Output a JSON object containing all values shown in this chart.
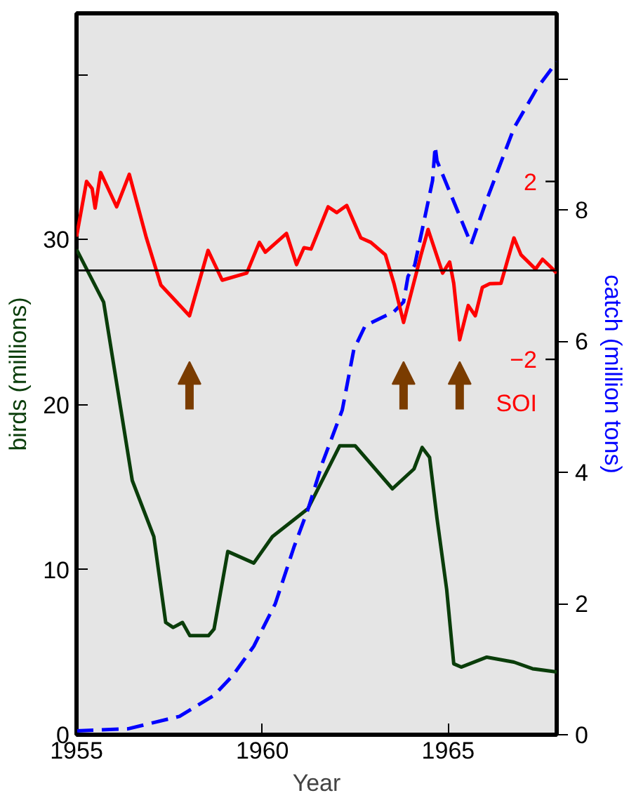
{
  "chart_data": {
    "type": "line",
    "xlabel": "Year",
    "ylabel": "birds (millions)",
    "y2label": "catch (million tons)",
    "y3label": "SOI",
    "xlim": [
      1955,
      1967.92
    ],
    "xticks": [
      1955,
      1960,
      1965
    ],
    "ylim": [
      0,
      43.7
    ],
    "yticks": [
      0,
      10,
      20,
      30,
      {
        "value": 40,
        "label": null
      }
    ],
    "y2lim": [
      0,
      11
    ],
    "y2ticks": [
      0,
      2,
      4,
      6,
      8,
      {
        "value": 10,
        "label": null
      }
    ],
    "y3lim": [
      -10.44,
      5.78
    ],
    "y3ticks": [
      2,
      {
        "value": -2,
        "label": "−2"
      }
    ],
    "grid": false,
    "ref_lines": [
      {
        "axis": "y3",
        "value": 0,
        "color": "#000000"
      }
    ],
    "series": [
      {
        "color": "#0a3d0a",
        "line_style": "solid",
        "x": [
          1955,
          1955.73,
          1956.5,
          1957.08,
          1957.4,
          1957.6,
          1957.85,
          1958.05,
          1958.55,
          1958.7,
          1959.07,
          1959.77,
          1960.27,
          1961.23,
          1962.08,
          1962.5,
          1963.5,
          1964.08,
          1964.3,
          1964.5,
          1964.7,
          1964.96,
          1965.15,
          1965.35,
          1966.04,
          1966.77,
          1967.27,
          1967.92
        ],
        "values": [
          29.4,
          26.2,
          15.4,
          12.0,
          6.8,
          6.5,
          6.8,
          6.0,
          6.0,
          6.4,
          11.1,
          10.4,
          12.0,
          13.7,
          17.5,
          17.5,
          14.9,
          16.1,
          17.4,
          16.8,
          13.1,
          8.8,
          4.3,
          4.1,
          4.7,
          4.4,
          4.0,
          3.8
        ]
      },
      {
        "color": "#0000ff",
        "axis": "y2",
        "line_style": "dashed",
        "x": [
          1955,
          1956.38,
          1957.77,
          1958.7,
          1959.2,
          1959.77,
          1960.35,
          1960.85,
          1961.23,
          1961.62,
          1962.15,
          1962.46,
          1962.77,
          1963.54,
          1963.8,
          1963.92,
          1964.1,
          1964.58,
          1964.65,
          1964.7,
          1965.62,
          1966.0,
          1966.77,
          1967.38,
          1967.92
        ],
        "values": [
          0.06,
          0.09,
          0.28,
          0.6,
          0.9,
          1.35,
          2.0,
          2.86,
          3.44,
          4.15,
          4.95,
          5.87,
          6.24,
          6.45,
          6.6,
          6.99,
          7.16,
          8.45,
          8.97,
          8.75,
          7.48,
          8.1,
          9.25,
          9.85,
          10.26
        ]
      },
      {
        "color": "#ff0000",
        "axis": "y3",
        "line_style": "solid",
        "x": [
          1955,
          1955.27,
          1955.42,
          1955.5,
          1955.65,
          1956.08,
          1956.42,
          1956.88,
          1957.27,
          1958.04,
          1958.54,
          1958.92,
          1959.58,
          1959.92,
          1960.08,
          1960.65,
          1960.92,
          1961.12,
          1961.31,
          1961.77,
          1962.0,
          1962.27,
          1962.65,
          1962.92,
          1963.31,
          1963.54,
          1963.8,
          1964.27,
          1964.46,
          1964.85,
          1965.04,
          1965.15,
          1965.31,
          1965.54,
          1965.73,
          1965.92,
          1966.12,
          1966.42,
          1966.77,
          1966.96,
          1967.35,
          1967.54,
          1967.73,
          1967.92
        ],
        "values": [
          0.76,
          2.0,
          1.84,
          1.4,
          2.2,
          1.43,
          2.16,
          0.73,
          -0.33,
          -1.02,
          0.45,
          -0.22,
          -0.06,
          0.63,
          0.41,
          0.83,
          0.13,
          0.51,
          0.48,
          1.43,
          1.3,
          1.46,
          0.73,
          0.63,
          0.35,
          -0.29,
          -1.17,
          0.35,
          0.92,
          -0.06,
          0.19,
          -0.29,
          -1.56,
          -0.79,
          -1.02,
          -0.38,
          -0.3,
          -0.29,
          0.73,
          0.35,
          0.03,
          0.25,
          0.1,
          -0.06
        ]
      }
    ]
  }
}
